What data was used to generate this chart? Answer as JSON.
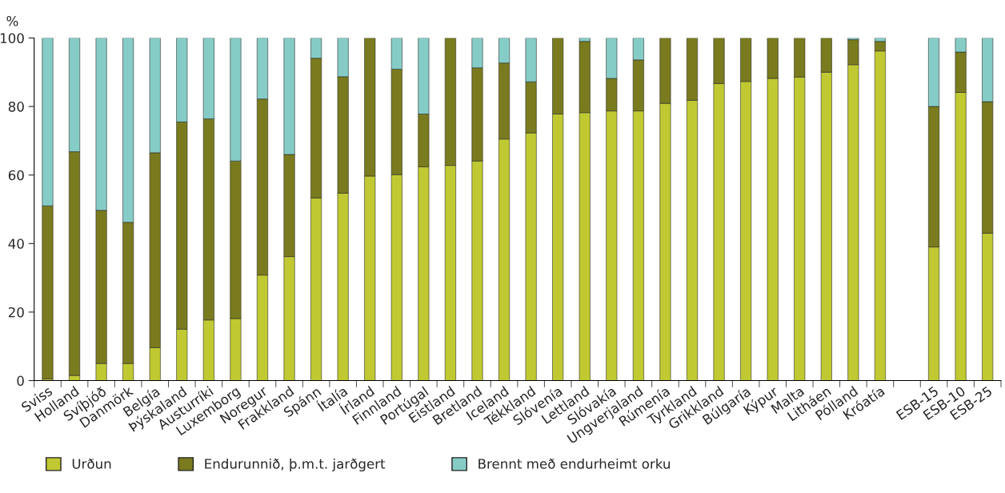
{
  "chart_data": {
    "type": "bar",
    "stacked": true,
    "ylabel": "%",
    "ylim": [
      0,
      100
    ],
    "yticks": [
      0,
      20,
      40,
      60,
      80,
      100
    ],
    "grid": false,
    "legend": "bottom left",
    "categories": [
      "Sviss",
      "Holland",
      "Svíþjóð",
      "Danmörk",
      "Belgía",
      "Þýskaland",
      "Austurríki",
      "Luxemborg",
      "Noregur",
      "Frakkland",
      "Spánn",
      "Ítalía",
      "Írland",
      "Finnland",
      "Portúgal",
      "Eistland",
      "Bretland",
      "Iceland",
      "Tékkland",
      "Slóvenía",
      "Lettland",
      "Slóvakía",
      "Ungverjaland",
      "Rúmenía",
      "Tyrkland",
      "Grikkland",
      "Búlgaría",
      "Kýpur",
      "Malta",
      "Litháen",
      "Pólland",
      "Króatía",
      null,
      "ESB-15",
      "ESB-10",
      "ESB-25"
    ],
    "series": [
      {
        "name": "Urðun",
        "color": "#c0c932",
        "values": [
          0.5,
          1.5,
          5,
          5,
          9.6,
          15,
          17.7,
          18.1,
          30.8,
          36.2,
          53.3,
          54.7,
          59.7,
          60.1,
          62.4,
          62.8,
          64.1,
          70.5,
          72.3,
          77.8,
          78.2,
          78.7,
          78.7,
          80.9,
          81.8,
          86.7,
          87.3,
          88.2,
          88.6,
          90,
          92.2,
          96.2,
          null,
          39,
          84.1,
          43
        ]
      },
      {
        "name": "Endurunnið, þ.m.t. jarðgert",
        "color": "#7a7b1e",
        "values": [
          50.5,
          65.3,
          44.7,
          41.2,
          56.9,
          60.5,
          58.7,
          46,
          51.4,
          29.8,
          40.8,
          34,
          40.3,
          30.8,
          15.4,
          37.2,
          27.2,
          22.2,
          14.9,
          22.2,
          20.8,
          9.5,
          14.9,
          19.1,
          18.2,
          13.3,
          12.7,
          11.8,
          11.4,
          10,
          7.3,
          2.8,
          null,
          41,
          11.8,
          38.4
        ]
      },
      {
        "name": "Brennt með endurheimt orku",
        "color": "#86ccc6",
        "values": [
          49,
          33.2,
          50.3,
          53.8,
          33.5,
          24.5,
          23.6,
          35.9,
          17.8,
          34,
          5.9,
          11.3,
          0,
          9.1,
          22.2,
          0,
          8.7,
          7.3,
          12.8,
          0,
          1,
          11.8,
          6.4,
          0,
          0,
          0,
          0,
          0,
          0,
          0,
          0.5,
          1,
          null,
          20,
          4.1,
          18.6
        ]
      }
    ]
  }
}
